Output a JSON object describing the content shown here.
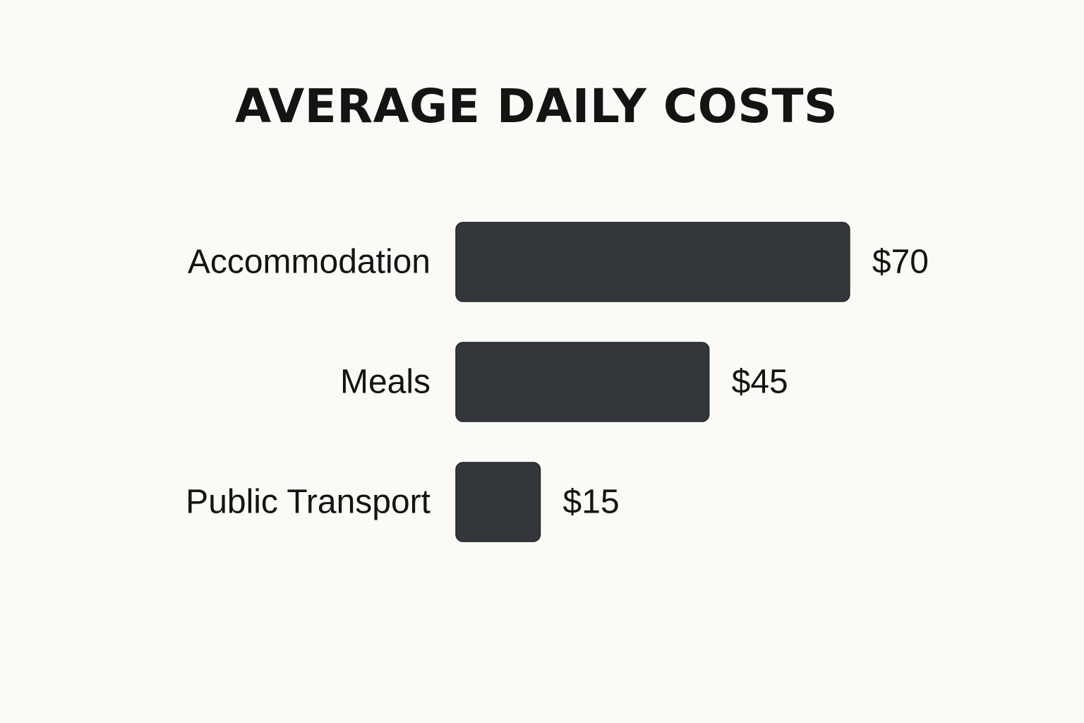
{
  "chart_data": {
    "type": "bar",
    "orientation": "horizontal",
    "title": "AVERAGE DAILY COSTS",
    "categories": [
      "Accommodation",
      "Meals",
      "Public Transport"
    ],
    "values": [
      70,
      45,
      15
    ],
    "value_labels": [
      "$70",
      "$45",
      "$15"
    ],
    "xlabel": "",
    "ylabel": "",
    "grid": false,
    "legend": "none",
    "bar_color": "#33373b",
    "background_color": "#fbfaf6",
    "text_color": "#141414"
  }
}
